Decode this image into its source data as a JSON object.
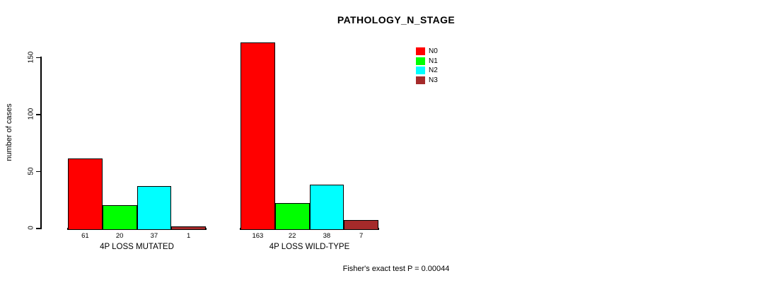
{
  "chart_data": {
    "type": "bar",
    "title": "PATHOLOGY_N_STAGE",
    "ylabel": "number of cases",
    "xlabel": "",
    "categories": [
      "4P LOSS MUTATED",
      "4P LOSS WILD-TYPE"
    ],
    "series": [
      {
        "name": "N0",
        "color": "#FF0000",
        "values": [
          61,
          163
        ]
      },
      {
        "name": "N1",
        "color": "#00FF00",
        "values": [
          20,
          22
        ]
      },
      {
        "name": "N2",
        "color": "#00FFFF",
        "values": [
          37,
          38
        ]
      },
      {
        "name": "N3",
        "color": "#A52A2A",
        "values": [
          1,
          7
        ]
      }
    ],
    "yticks": [
      0,
      50,
      100,
      150
    ],
    "ylim": [
      0,
      165
    ],
    "grid": false,
    "legend_position": "top-right",
    "bar_value_labels_shown": true,
    "footer": "Fisher's exact test P = 0.00044",
    "background_color": "#FFFFFF",
    "axis_color": "#000000"
  }
}
